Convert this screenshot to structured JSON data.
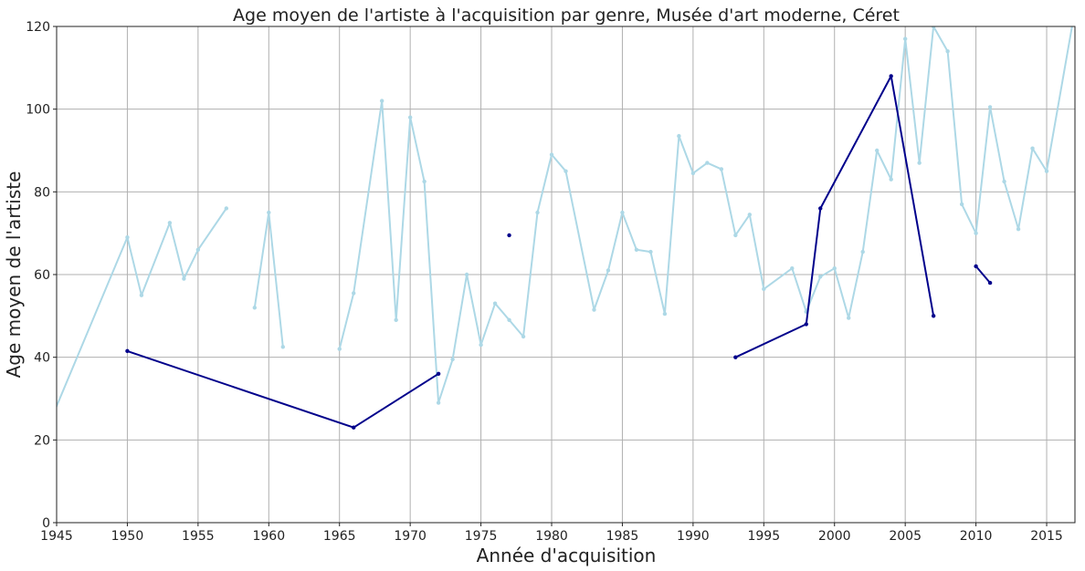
{
  "chart_data": {
    "type": "line",
    "title": "Age moyen de l'artiste à l'acquisition par genre, Musée d'art moderne, Céret",
    "xlabel": "Année d'acquisition",
    "ylabel": "Age moyen de l'artiste",
    "xlim": [
      1945,
      2017
    ],
    "ylim": [
      0,
      120
    ],
    "xticks": [
      1945,
      1950,
      1955,
      1960,
      1965,
      1970,
      1975,
      1980,
      1985,
      1990,
      1995,
      2000,
      2005,
      2010,
      2015
    ],
    "yticks": [
      0,
      20,
      40,
      60,
      80,
      100,
      120
    ],
    "grid": true,
    "series": [
      {
        "color": "#add8e6",
        "segments": [
          [
            [
              1944,
              20
            ],
            [
              1950,
              69
            ],
            [
              1951,
              55
            ],
            [
              1953,
              72.5
            ],
            [
              1954,
              59
            ],
            [
              1955,
              66
            ],
            [
              1957,
              76
            ]
          ],
          [
            [
              1959,
              52
            ],
            [
              1960,
              75
            ],
            [
              1961,
              42.5
            ]
          ],
          [
            [
              1965,
              42
            ],
            [
              1966,
              55.5
            ],
            [
              1968,
              102
            ],
            [
              1969,
              49
            ],
            [
              1970,
              98
            ],
            [
              1971,
              82.5
            ],
            [
              1972,
              29
            ],
            [
              1973,
              39.5
            ],
            [
              1974,
              60
            ],
            [
              1975,
              43
            ],
            [
              1976,
              53
            ],
            [
              1977,
              49
            ],
            [
              1978,
              45
            ],
            [
              1979,
              75
            ],
            [
              1980,
              89
            ],
            [
              1981,
              85
            ],
            [
              1983,
              51.5
            ],
            [
              1984,
              61
            ],
            [
              1985,
              75
            ],
            [
              1986,
              66
            ],
            [
              1987,
              65.5
            ],
            [
              1988,
              50.5
            ],
            [
              1989,
              93.5
            ],
            [
              1990,
              84.5
            ],
            [
              1991,
              87
            ],
            [
              1992,
              85.5
            ],
            [
              1993,
              69.5
            ],
            [
              1994,
              74.5
            ],
            [
              1995,
              56.5
            ],
            [
              1997,
              61.5
            ],
            [
              1998,
              51
            ],
            [
              1999,
              59.5
            ],
            [
              2000,
              61.5
            ],
            [
              2001,
              49.5
            ],
            [
              2002,
              65.5
            ],
            [
              2003,
              90
            ],
            [
              2004,
              83
            ],
            [
              2005,
              117
            ],
            [
              2006,
              87
            ],
            [
              2007,
              120
            ],
            [
              2008,
              114
            ],
            [
              2009,
              77
            ],
            [
              2010,
              70
            ],
            [
              2011,
              100.5
            ],
            [
              2012,
              82.5
            ],
            [
              2013,
              71
            ],
            [
              2014,
              90.5
            ],
            [
              2015,
              85
            ],
            [
              2017,
              124
            ]
          ]
        ]
      },
      {
        "color": "#00008b",
        "segments": [
          [
            [
              1950,
              41.5
            ],
            [
              1966,
              23
            ],
            [
              1972,
              36
            ]
          ],
          [
            [
              1977,
              69.5
            ]
          ],
          [
            [
              1993,
              40
            ],
            [
              1998,
              48
            ],
            [
              1999,
              76
            ],
            [
              2004,
              108
            ],
            [
              2007,
              50
            ]
          ],
          [
            [
              2010,
              62
            ],
            [
              2011,
              58
            ]
          ]
        ]
      }
    ]
  }
}
